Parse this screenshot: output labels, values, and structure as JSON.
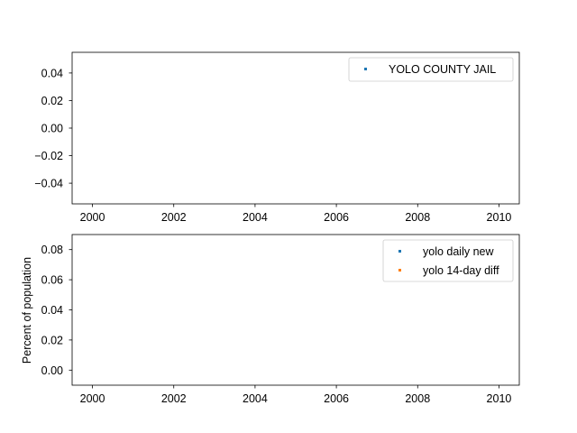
{
  "chart_data": [
    {
      "type": "scatter",
      "title": "",
      "xlabel": "",
      "ylabel": "",
      "xlim": [
        1999.5,
        2010.5
      ],
      "ylim": [
        -0.055,
        0.055
      ],
      "x_ticks": [
        2000,
        2002,
        2004,
        2006,
        2008,
        2010
      ],
      "x_tick_labels": [
        "2000",
        "2002",
        "2004",
        "2006",
        "2008",
        "2010"
      ],
      "y_ticks": [
        0.04,
        0.02,
        0.0,
        -0.02,
        -0.04
      ],
      "y_tick_labels": [
        "0.04",
        "0.02",
        "0.00",
        "−0.02",
        "−0.04"
      ],
      "grid": false,
      "legend_position": "top-right",
      "series": [
        {
          "name": "YOLO COUNTY JAIL",
          "color": "#1f77b4",
          "x": [],
          "y": []
        }
      ]
    },
    {
      "type": "scatter",
      "title": "",
      "xlabel": "",
      "ylabel": "Percent of population",
      "xlim": [
        1999.5,
        2010.5
      ],
      "ylim": [
        -0.01,
        0.09
      ],
      "x_ticks": [
        2000,
        2002,
        2004,
        2006,
        2008,
        2010
      ],
      "x_tick_labels": [
        "2000",
        "2002",
        "2004",
        "2006",
        "2008",
        "2010"
      ],
      "y_ticks": [
        0.08,
        0.06,
        0.04,
        0.02,
        0.0
      ],
      "y_tick_labels": [
        "0.08",
        "0.06",
        "0.04",
        "0.02",
        "0.00"
      ],
      "grid": false,
      "legend_position": "top-right",
      "series": [
        {
          "name": "yolo daily new",
          "color": "#1f77b4",
          "x": [],
          "y": []
        },
        {
          "name": "yolo 14-day diff",
          "color": "#ff7f0e",
          "x": [],
          "y": []
        }
      ]
    }
  ]
}
